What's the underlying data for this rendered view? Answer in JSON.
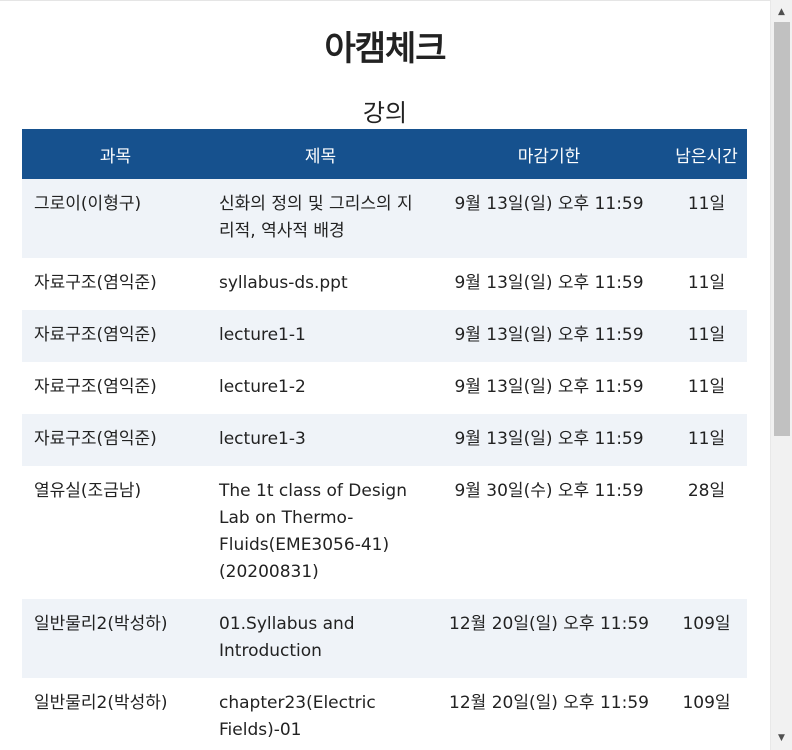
{
  "header": {
    "title": "아캠체크",
    "section": "강의"
  },
  "table": {
    "columns": [
      "과목",
      "제목",
      "마감기한",
      "남은시간"
    ],
    "rows": [
      {
        "course": "그로이(이형구)",
        "title": "신화의 정의 및 그리스의 지리적, 역사적 배경",
        "deadline": "9월 13일(일) 오후 11:59",
        "remaining": "11일"
      },
      {
        "course": "자료구조(염익준)",
        "title": "syllabus-ds.ppt",
        "deadline": "9월 13일(일) 오후 11:59",
        "remaining": "11일"
      },
      {
        "course": "자료구조(염익준)",
        "title": "lecture1-1",
        "deadline": "9월 13일(일) 오후 11:59",
        "remaining": "11일"
      },
      {
        "course": "자료구조(염익준)",
        "title": "lecture1-2",
        "deadline": "9월 13일(일) 오후 11:59",
        "remaining": "11일"
      },
      {
        "course": "자료구조(염익준)",
        "title": "lecture1-3",
        "deadline": "9월 13일(일) 오후 11:59",
        "remaining": "11일"
      },
      {
        "course": "열유실(조금남)",
        "title": "The 1t class of Design Lab on Thermo-Fluids(EME3056-41)(20200831)",
        "deadline": "9월 30일(수) 오후 11:59",
        "remaining": "28일"
      },
      {
        "course": "일반물리2(박성하)",
        "title": "01.Syllabus and Introduction",
        "deadline": "12월 20일(일) 오후 11:59",
        "remaining": "109일"
      },
      {
        "course": "일반물리2(박성하)",
        "title": "chapter23(Electric Fields)-01",
        "deadline": "12월 20일(일) 오후 11:59",
        "remaining": "109일"
      }
    ]
  },
  "scrollbar": {
    "up_icon": "arrow-up-icon",
    "down_icon": "arrow-down-icon",
    "position_fraction": 0.0
  }
}
